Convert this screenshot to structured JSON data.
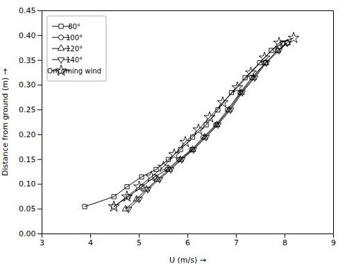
{
  "chart_data": {
    "type": "line",
    "xlabel": "U (m/s)",
    "ylabel": "Distance from ground (m)",
    "xlim": [
      3,
      9
    ],
    "ylim": [
      0.0,
      0.45
    ],
    "xticks": [
      3,
      4,
      5,
      6,
      7,
      8,
      9
    ],
    "yticks": [
      {
        "value": 0.0,
        "label": "0.00"
      },
      0.05,
      {
        "value": 0.1,
        "label": "0.10"
      },
      0.15,
      {
        "value": 0.2,
        "label": "0.20"
      },
      0.25,
      {
        "value": 0.3,
        "label": "0.30"
      },
      0.35,
      {
        "value": 0.4,
        "label": "0.40"
      },
      0.45
    ],
    "grid": false,
    "legend": "upper left",
    "series": [
      {
        "name": "80°",
        "color": "black",
        "marker": "square",
        "x": [
          3.88,
          4.48,
          4.75,
          5.05,
          5.35,
          5.6,
          5.85,
          6.1,
          6.38,
          6.62,
          6.9,
          7.18,
          7.48,
          7.72,
          7.95
        ],
        "values": [
          0.055,
          0.075,
          0.095,
          0.115,
          0.13,
          0.15,
          0.17,
          0.195,
          0.22,
          0.25,
          0.285,
          0.315,
          0.345,
          0.37,
          0.385
        ]
      },
      {
        "name": "100°",
        "color": "black",
        "marker": "circle",
        "x": [
          4.48,
          4.78,
          5.05,
          5.32,
          5.58,
          5.82,
          6.08,
          6.32,
          6.58,
          6.82,
          7.08,
          7.32,
          7.6,
          7.85,
          8.05
        ],
        "values": [
          0.055,
          0.075,
          0.095,
          0.115,
          0.13,
          0.15,
          0.17,
          0.195,
          0.22,
          0.25,
          0.285,
          0.315,
          0.345,
          0.37,
          0.385
        ]
      },
      {
        "name": "120°",
        "color": "black",
        "marker": "triangle-up",
        "x": [
          4.72,
          4.95,
          5.15,
          5.38,
          5.62,
          5.85,
          6.1,
          6.35,
          6.6,
          6.85,
          7.1,
          7.35,
          7.6,
          7.85,
          8.05
        ],
        "values": [
          0.05,
          0.07,
          0.09,
          0.11,
          0.13,
          0.15,
          0.17,
          0.195,
          0.22,
          0.25,
          0.285,
          0.315,
          0.345,
          0.37,
          0.385
        ]
      },
      {
        "name": "140°",
        "color": "black",
        "marker": "triangle-down",
        "x": [
          4.78,
          5.0,
          5.18,
          5.42,
          5.65,
          5.88,
          6.12,
          6.38,
          6.62,
          6.88,
          7.12,
          7.38,
          7.62,
          7.88,
          8.05
        ],
        "values": [
          0.05,
          0.07,
          0.09,
          0.11,
          0.13,
          0.15,
          0.17,
          0.195,
          0.22,
          0.25,
          0.285,
          0.315,
          0.345,
          0.37,
          0.385
        ]
      },
      {
        "name": "Oncoming wind",
        "color": "black",
        "marker": "star",
        "x": [
          4.48,
          4.75,
          5.0,
          5.25,
          5.5,
          5.72,
          5.95,
          6.22,
          6.45,
          6.72,
          7.02,
          7.3,
          7.58,
          7.88,
          8.18
        ],
        "values": [
          0.055,
          0.075,
          0.095,
          0.115,
          0.135,
          0.16,
          0.185,
          0.21,
          0.235,
          0.265,
          0.295,
          0.325,
          0.355,
          0.385,
          0.395
        ]
      }
    ]
  }
}
